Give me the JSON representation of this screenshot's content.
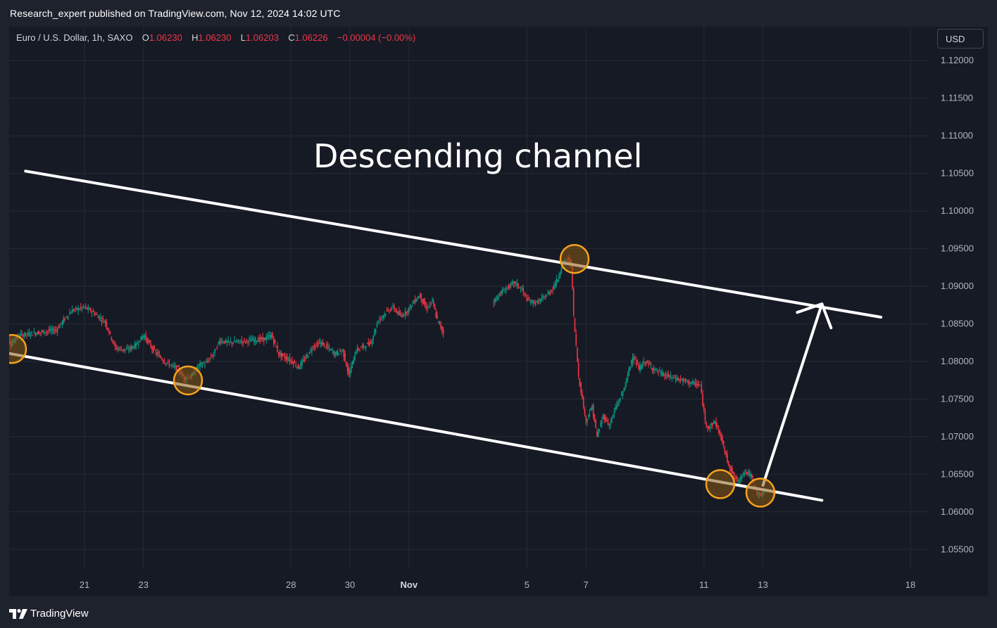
{
  "publisher_line": "Research_expert published on TradingView.com, Nov 12, 2024 14:02 UTC",
  "legend": {
    "symbol": "Euro / U.S. Dollar, 1h, SAXO",
    "open_label": "O",
    "open": "1.06230",
    "high_label": "H",
    "high": "1.06230",
    "low_label": "L",
    "low": "1.06203",
    "close_label": "C",
    "close": "1.06226",
    "change": "−0.00004 (−0.00%)"
  },
  "currency_button": "USD",
  "footer_brand": "TradingView",
  "colors": {
    "background": "#161a25",
    "up_candle": "#089981",
    "down_candle": "#f23645",
    "channel_line": "#ffffff",
    "touch_marker_stroke": "#f7a21b",
    "touch_marker_fill": "#8a5a12"
  },
  "chart_data": {
    "type": "candlestick",
    "symbol": "Euro / U.S. Dollar",
    "interval": "1h",
    "exchange": "SAXO",
    "annotation_title": "Descending channel",
    "ylim": [
      1.0525,
      1.1245
    ],
    "y_ticks": [
      "1.12000",
      "1.11500",
      "1.11000",
      "1.10500",
      "1.10000",
      "1.09500",
      "1.09000",
      "1.08500",
      "1.08000",
      "1.07500",
      "1.07000",
      "1.06500",
      "1.06000",
      "1.05500"
    ],
    "x_ticks": [
      {
        "label": "21",
        "x": "Oct 21",
        "major": false
      },
      {
        "label": "23",
        "x": "Oct 23",
        "major": false
      },
      {
        "label": "28",
        "x": "Oct 28",
        "major": false
      },
      {
        "label": "30",
        "x": "Oct 30",
        "major": false
      },
      {
        "label": "Nov",
        "x": "Nov 1",
        "major": true
      },
      {
        "label": "5",
        "x": "Nov 5",
        "major": false
      },
      {
        "label": "7",
        "x": "Nov 7",
        "major": false
      },
      {
        "label": "11",
        "x": "Nov 11",
        "major": false
      },
      {
        "label": "13",
        "x": "Nov 13",
        "major": false
      },
      {
        "label": "18",
        "x": "Nov 18",
        "major": false
      }
    ],
    "price_path": [
      {
        "x": "Oct 18 02:00",
        "y": 1.0855
      },
      {
        "x": "Oct 18 07:00",
        "y": 1.086
      },
      {
        "x": "Oct 18 13:00",
        "y": 1.0822
      },
      {
        "x": "Oct 18 16:00",
        "y": 1.083
      },
      {
        "x": "Oct 18 21:00",
        "y": 1.0835
      },
      {
        "x": "Oct 20 02:00",
        "y": 1.0842
      },
      {
        "x": "Oct 20 08:00",
        "y": 1.0855
      },
      {
        "x": "Oct 20 15:00",
        "y": 1.0868
      },
      {
        "x": "Oct 21 01:00",
        "y": 1.0872
      },
      {
        "x": "Oct 21 08:00",
        "y": 1.0865
      },
      {
        "x": "Oct 21 18:00",
        "y": 1.0852
      },
      {
        "x": "Oct 22 02:00",
        "y": 1.0818
      },
      {
        "x": "Oct 22 11:00",
        "y": 1.0815
      },
      {
        "x": "Oct 22 19:00",
        "y": 1.0822
      },
      {
        "x": "Oct 23 01:00",
        "y": 1.0835
      },
      {
        "x": "Oct 23 09:00",
        "y": 1.0815
      },
      {
        "x": "Oct 23 18:00",
        "y": 1.08
      },
      {
        "x": "Oct 23 23:00",
        "y": 1.0795
      },
      {
        "x": "Oct 24 05:00",
        "y": 1.079
      },
      {
        "x": "Oct 24 10:00",
        "y": 1.0778
      },
      {
        "x": "Oct 24 16:00",
        "y": 1.078
      },
      {
        "x": "Oct 24 22:00",
        "y": 1.0795
      },
      {
        "x": "Oct 25 04:00",
        "y": 1.0798
      },
      {
        "x": "Oct 25 10:00",
        "y": 1.081
      },
      {
        "x": "Oct 25 15:00",
        "y": 1.0828
      },
      {
        "x": "Oct 25 22:00",
        "y": 1.0825
      },
      {
        "x": "Oct 27 04:00",
        "y": 1.083
      },
      {
        "x": "Oct 27 09:00",
        "y": 1.0835
      },
      {
        "x": "Oct 27 15:00",
        "y": 1.081
      },
      {
        "x": "Oct 28 02:00",
        "y": 1.08
      },
      {
        "x": "Oct 28 07:00",
        "y": 1.0792
      },
      {
        "x": "Oct 28 13:00",
        "y": 1.0805
      },
      {
        "x": "Oct 28 19:00",
        "y": 1.082
      },
      {
        "x": "Oct 29 01:00",
        "y": 1.0825
      },
      {
        "x": "Oct 29 07:00",
        "y": 1.0818
      },
      {
        "x": "Oct 29 13:00",
        "y": 1.081
      },
      {
        "x": "Oct 29 19:00",
        "y": 1.0815
      },
      {
        "x": "Oct 30 00:00",
        "y": 1.0782
      },
      {
        "x": "Oct 30 06:00",
        "y": 1.0815
      },
      {
        "x": "Oct 30 12:00",
        "y": 1.082
      },
      {
        "x": "Oct 30 18:00",
        "y": 1.0825
      },
      {
        "x": "Oct 31 00:00",
        "y": 1.0855
      },
      {
        "x": "Oct 31 06:00",
        "y": 1.0865
      },
      {
        "x": "Oct 31 12:00",
        "y": 1.0872
      },
      {
        "x": "Oct 31 18:00",
        "y": 1.086
      },
      {
        "x": "Nov 1 00:00",
        "y": 1.0868
      },
      {
        "x": "Nov 1 05:00",
        "y": 1.088
      },
      {
        "x": "Nov 1 10:00",
        "y": 1.0888
      },
      {
        "x": "Nov 1 15:00",
        "y": 1.087
      },
      {
        "x": "Nov 1 20:00",
        "y": 1.088
      },
      {
        "x": "Nov 2 00:00",
        "y": 1.0855
      },
      {
        "x": "Nov 2 05:00",
        "y": 1.0838
      },
      {
        "x": "Nov 3 21:00",
        "y": 1.0878
      },
      {
        "x": "Nov 4 03:00",
        "y": 1.089
      },
      {
        "x": "Nov 4 09:00",
        "y": 1.0898
      },
      {
        "x": "Nov 4 15:00",
        "y": 1.0905
      },
      {
        "x": "Nov 4 21:00",
        "y": 1.0895
      },
      {
        "x": "Nov 5 02:00",
        "y": 1.088
      },
      {
        "x": "Nov 5 09:00",
        "y": 1.0878
      },
      {
        "x": "Nov 5 15:00",
        "y": 1.0885
      },
      {
        "x": "Nov 5 21:00",
        "y": 1.0895
      },
      {
        "x": "Nov 6 02:00",
        "y": 1.091
      },
      {
        "x": "Nov 6 06:00",
        "y": 1.093
      },
      {
        "x": "Nov 6 10:00",
        "y": 1.0935
      },
      {
        "x": "Nov 6 13:00",
        "y": 1.093
      },
      {
        "x": "Nov 6 15:00",
        "y": 1.086
      },
      {
        "x": "Nov 6 19:00",
        "y": 1.078
      },
      {
        "x": "Nov 7 01:00",
        "y": 1.072
      },
      {
        "x": "Nov 7 06:00",
        "y": 1.074
      },
      {
        "x": "Nov 7 10:00",
        "y": 1.07
      },
      {
        "x": "Nov 7 15:00",
        "y": 1.0728
      },
      {
        "x": "Nov 7 20:00",
        "y": 1.0715
      },
      {
        "x": "Nov 8 01:00",
        "y": 1.0738
      },
      {
        "x": "Nov 8 06:00",
        "y": 1.0755
      },
      {
        "x": "Nov 8 10:00",
        "y": 1.0775
      },
      {
        "x": "Nov 8 15:00",
        "y": 1.0808
      },
      {
        "x": "Nov 8 20:00",
        "y": 1.079
      },
      {
        "x": "Nov 9 01:00",
        "y": 1.08
      },
      {
        "x": "Nov 9 08:00",
        "y": 1.079
      },
      {
        "x": "Nov 9 16:00",
        "y": 1.0782
      },
      {
        "x": "Nov 10 22:00",
        "y": 1.0768
      },
      {
        "x": "Nov 11 02:00",
        "y": 1.072
      },
      {
        "x": "Nov 11 05:00",
        "y": 1.0712
      },
      {
        "x": "Nov 11 10:00",
        "y": 1.072
      },
      {
        "x": "Nov 11 15:00",
        "y": 1.0698
      },
      {
        "x": "Nov 11 20:00",
        "y": 1.0668
      },
      {
        "x": "Nov 12 01:00",
        "y": 1.0648
      },
      {
        "x": "Nov 12 05:00",
        "y": 1.064
      },
      {
        "x": "Nov 12 10:00",
        "y": 1.0655
      },
      {
        "x": "Nov 12 15:00",
        "y": 1.0648
      },
      {
        "x": "Nov 12 19:00",
        "y": 1.0628
      },
      {
        "x": "Nov 12 23:00",
        "y": 1.0622
      },
      {
        "x": "Nov 13 02:00",
        "y": 1.0625
      }
    ],
    "upper_channel": [
      {
        "x": "Oct 19",
        "y": 1.1053
      },
      {
        "x": "Nov 17",
        "y": 1.08588
      }
    ],
    "lower_channel": [
      {
        "x": "Oct 18",
        "y": 1.08137
      },
      {
        "x": "Nov 15",
        "y": 1.06153
      }
    ],
    "projection_arrow": [
      {
        "x": "Nov 13",
        "y": 1.06352
      },
      {
        "x": "Nov 15",
        "y": 1.08764
      }
    ],
    "touch_points": [
      {
        "x": "Oct 18",
        "y": 1.08165
      },
      {
        "x": "Oct 24",
        "y": 1.07747
      },
      {
        "x": "Nov 6",
        "y": 1.09362
      },
      {
        "x": "Nov 12",
        "y": 1.06368
      },
      {
        "x": "Nov 12",
        "y": 1.06255
      }
    ]
  }
}
